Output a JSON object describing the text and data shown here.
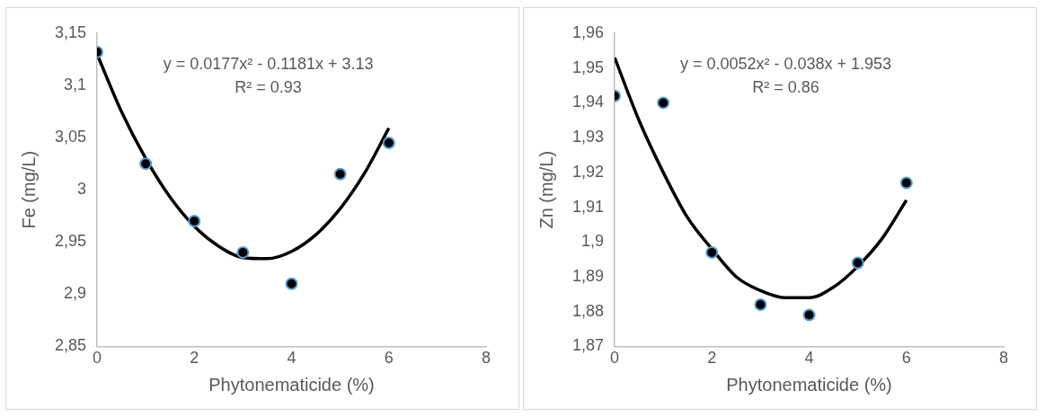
{
  "chart_data": [
    {
      "type": "scatter",
      "ylabel": "Fe (mg/L)",
      "xlabel": "Phytonematicide (%)",
      "xlim": [
        0,
        8
      ],
      "xticks": [
        0,
        2,
        4,
        6,
        8
      ],
      "ylim": [
        2.85,
        3.15
      ],
      "yticks": [
        {
          "value": 2.85,
          "label": "2,85"
        },
        {
          "value": 2.9,
          "label": "2,9"
        },
        {
          "value": 2.95,
          "label": "2,95"
        },
        {
          "value": 3,
          "label": "3"
        },
        {
          "value": 3.05,
          "label": "3,05"
        },
        {
          "value": 3.1,
          "label": "3,1"
        },
        {
          "value": 3.15,
          "label": "3,15"
        }
      ],
      "grid": false,
      "legend": false,
      "annotations": [
        "y = 0.0177x² - 0.1181x + 3.13",
        "R² = 0.93"
      ],
      "series": [
        {
          "marker": "circle",
          "color": "#000000",
          "x": [
            0,
            1,
            2,
            3,
            4,
            5,
            6
          ],
          "values": [
            3.132,
            3.025,
            2.97,
            2.94,
            2.91,
            3.015,
            3.045
          ]
        },
        {
          "type": "line",
          "marker": "none",
          "color": "#000000",
          "x": [
            0,
            0.5,
            1,
            1.5,
            2,
            2.5,
            3,
            3.5,
            4,
            4.5,
            5,
            5.5,
            6
          ],
          "values": [
            3.13,
            3.075,
            3.03,
            2.993,
            2.965,
            2.946,
            2.935,
            2.934,
            2.941,
            2.957,
            2.982,
            3.016,
            3.059
          ]
        }
      ]
    },
    {
      "type": "scatter",
      "ylabel": "Zn (mg/L)",
      "xlabel": "Phytonematicide (%)",
      "xlim": [
        0,
        8
      ],
      "xticks": [
        0,
        2,
        4,
        6,
        8
      ],
      "ylim": [
        1.87,
        1.96
      ],
      "yticks": [
        {
          "value": 1.87,
          "label": "1,87"
        },
        {
          "value": 1.88,
          "label": "1,88"
        },
        {
          "value": 1.89,
          "label": "1,89"
        },
        {
          "value": 1.9,
          "label": "1,9"
        },
        {
          "value": 1.91,
          "label": "1,91"
        },
        {
          "value": 1.92,
          "label": "1,92"
        },
        {
          "value": 1.93,
          "label": "1,93"
        },
        {
          "value": 1.94,
          "label": "1,94"
        },
        {
          "value": 1.95,
          "label": "1,95"
        },
        {
          "value": 1.96,
          "label": "1,96"
        }
      ],
      "grid": false,
      "legend": false,
      "annotations": [
        "y = 0.0052x² - 0.038x + 1.953",
        "R² = 0.86"
      ],
      "series": [
        {
          "marker": "circle",
          "color": "#000000",
          "x": [
            0,
            1,
            2,
            3,
            4,
            5,
            6
          ],
          "values": [
            1.942,
            1.94,
            1.897,
            1.882,
            1.879,
            1.894,
            1.917
          ]
        },
        {
          "type": "line",
          "marker": "none",
          "color": "#000000",
          "x": [
            0,
            0.5,
            1,
            1.5,
            2,
            2.5,
            3,
            3.5,
            4,
            4.5,
            5,
            5.5,
            6
          ],
          "values": [
            1.953,
            1.935,
            1.92,
            1.907,
            1.898,
            1.89,
            1.886,
            1.884,
            1.884,
            1.887,
            1.893,
            1.901,
            1.912
          ]
        }
      ]
    }
  ]
}
